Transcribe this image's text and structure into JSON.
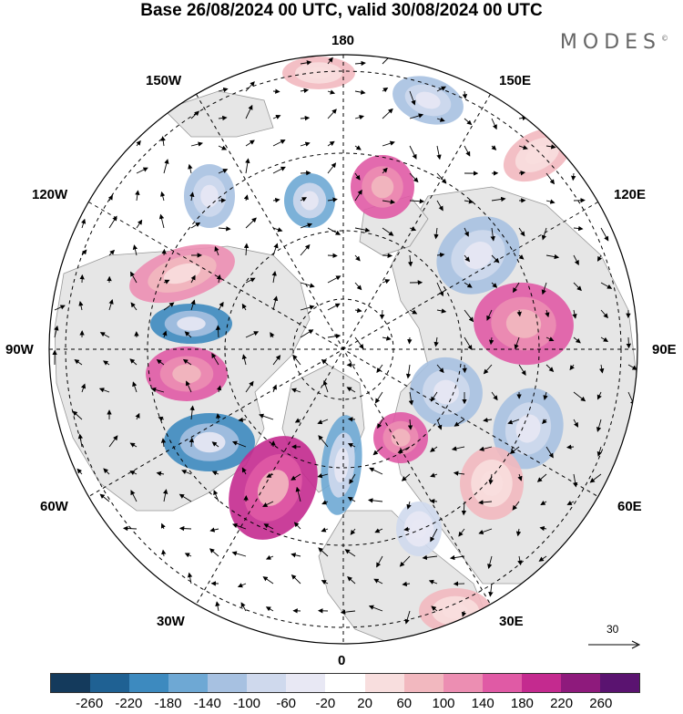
{
  "title": "Base 26/08/2024 00 UTC, valid 30/08/2024 00 UTC",
  "brand": "MODES",
  "brand_mark": "©",
  "longitude_labels": {
    "lon_180": "180",
    "lon_150W": "150W",
    "lon_150E": "150E",
    "lon_120W": "120W",
    "lon_120E": "120E",
    "lon_90W": "90W",
    "lon_90E": "90E",
    "lon_60W": "60W",
    "lon_60E": "60E",
    "lon_30W": "30W",
    "lon_30E": "30E",
    "lon_0": "0"
  },
  "reference_vector": {
    "label": "30"
  },
  "colorbar": {
    "colors": [
      "#143a5c",
      "#1f6193",
      "#3d8abf",
      "#6ea8d4",
      "#a7c1e1",
      "#cfd9ed",
      "#e8e8f4",
      "#ffffff",
      "#f8dede",
      "#f2b8bf",
      "#ec8eb2",
      "#e05aa5",
      "#c42a8f",
      "#8e1a7c",
      "#5a1370"
    ],
    "tick_labels": [
      "-260",
      "-220",
      "-180",
      "-140",
      "-100",
      "-60",
      "-20",
      "20",
      "60",
      "100",
      "140",
      "180",
      "220",
      "260"
    ]
  },
  "map_colors": {
    "ocean": "#ffffff",
    "land": "#e6e6e6",
    "coast": "#999999",
    "grid": "#000000"
  }
}
